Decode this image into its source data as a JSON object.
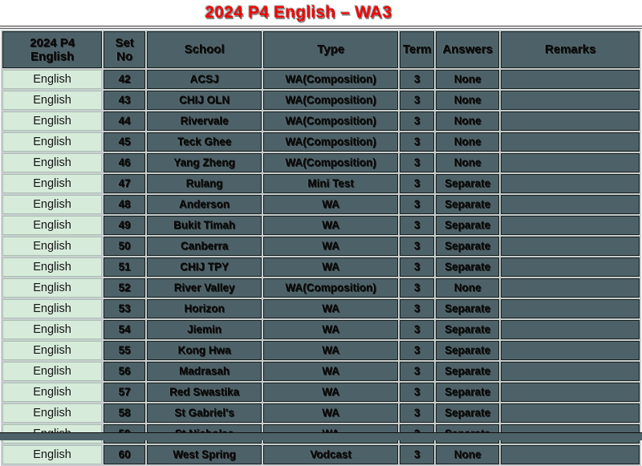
{
  "title": "2024 P4 English – WA3",
  "table": {
    "headers": [
      "2024 P4 English",
      "Set No",
      "School",
      "Type",
      "Term",
      "Answers",
      "Remarks"
    ],
    "rows": [
      [
        "English",
        "42",
        "ACSJ",
        "WA(Composition)",
        "3",
        "None",
        ""
      ],
      [
        "English",
        "43",
        "CHIJ OLN",
        "WA(Composition)",
        "3",
        "None",
        ""
      ],
      [
        "English",
        "44",
        "Rivervale",
        "WA(Composition)",
        "3",
        "None",
        ""
      ],
      [
        "English",
        "45",
        "Teck Ghee",
        "WA(Composition)",
        "3",
        "None",
        ""
      ],
      [
        "English",
        "46",
        "Yang Zheng",
        "WA(Composition)",
        "3",
        "None",
        ""
      ],
      [
        "English",
        "47",
        "Rulang",
        "Mini Test",
        "3",
        "Separate",
        ""
      ],
      [
        "English",
        "48",
        "Anderson",
        "WA",
        "3",
        "Separate",
        ""
      ],
      [
        "English",
        "49",
        "Bukit Timah",
        "WA",
        "3",
        "Separate",
        ""
      ],
      [
        "English",
        "50",
        "Canberra",
        "WA",
        "3",
        "Separate",
        ""
      ],
      [
        "English",
        "51",
        "CHIJ TPY",
        "WA",
        "3",
        "Separate",
        ""
      ],
      [
        "English",
        "52",
        "River Valley",
        "WA(Composition)",
        "3",
        "None",
        ""
      ],
      [
        "English",
        "53",
        "Horizon",
        "WA",
        "3",
        "Separate",
        ""
      ],
      [
        "English",
        "54",
        "Jiemin",
        "WA",
        "3",
        "Separate",
        ""
      ],
      [
        "English",
        "55",
        "Kong Hwa",
        "WA",
        "3",
        "Separate",
        ""
      ],
      [
        "English",
        "56",
        "Madrasah",
        "WA",
        "3",
        "Separate",
        ""
      ],
      [
        "English",
        "57",
        "Red Swastika",
        "WA",
        "3",
        "Separate",
        ""
      ],
      [
        "English",
        "58",
        "St Gabriel's",
        "WA",
        "3",
        "Separate",
        ""
      ],
      [
        "English",
        "59",
        "St Nicholas",
        "WA",
        "3",
        "Separate",
        ""
      ],
      [
        "English",
        "60",
        "West Spring",
        "Vodcast",
        "3",
        "None",
        ""
      ]
    ]
  },
  "colors": {
    "title_red": "#f40404",
    "cell_slate": "#4d6168",
    "subject_mint": "#d7ebda",
    "grid_silver": "#c9cfd0"
  }
}
